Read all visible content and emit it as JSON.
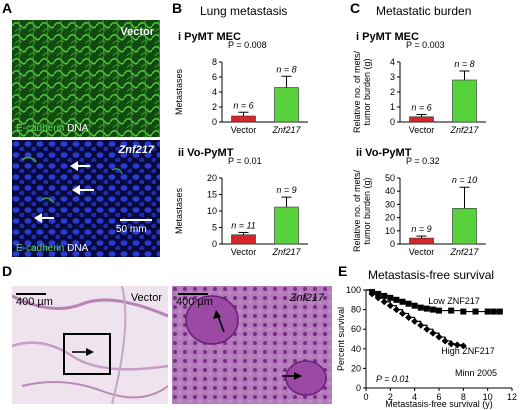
{
  "panel_letters": {
    "A": "A",
    "B": "B",
    "C": "C",
    "D": "D",
    "E": "E"
  },
  "panel_a": {
    "top_label": "Vector",
    "bottom_label": "Znf217",
    "caption_marker": "E-cadherin",
    "caption_dna": "DNA",
    "scale_bar": "50 mm"
  },
  "panel_b": {
    "title": "Lung metastasis",
    "ylabel": "Metastases"
  },
  "panel_c": {
    "title": "Metastatic burden",
    "ylabel_line1": "Relative no. of mets/",
    "ylabel_line2": "tumor burden (g)"
  },
  "panel_d": {
    "left_label": "Vector",
    "right_label": "Znf217",
    "scale_left": "400 µm",
    "scale_right": "400 µm"
  },
  "panel_e": {
    "title": "Metastasis-free survival",
    "xlabel": "Metastasis-free survival (y)",
    "ylabel": "Percent survival",
    "pvalue": "P = 0.01",
    "dataset": "Minn 2005",
    "low_label": "Low ZNF217",
    "high_label": "High ZNF217"
  },
  "colors": {
    "vector_bar": "#d62728",
    "znf217_bar": "#58d23c",
    "low": "#000000",
    "high": "#000000"
  },
  "chart_data": [
    {
      "type": "bar",
      "panel": "B",
      "subtitle": "i   PyMT MEC",
      "categories": [
        "Vector",
        "Znf217"
      ],
      "values": [
        0.8,
        4.6
      ],
      "errors": [
        0.5,
        1.5
      ],
      "n_labels": [
        "n = 6",
        "n = 8"
      ],
      "pvalue": "P = 0.008",
      "ylim": [
        0,
        8
      ],
      "yticks": [
        0,
        2,
        4,
        6,
        8
      ],
      "ylabel": "Metastases"
    },
    {
      "type": "bar",
      "panel": "B",
      "subtitle": "ii   Vo-PyMT",
      "categories": [
        "Vector",
        "Znf217"
      ],
      "values": [
        2.8,
        11.2
      ],
      "errors": [
        0.7,
        3.0
      ],
      "n_labels": [
        "n = 11",
        "n = 9"
      ],
      "pvalue": "P = 0.01",
      "ylim": [
        0,
        20
      ],
      "yticks": [
        0,
        5,
        10,
        15,
        20
      ],
      "ylabel": "Metastases"
    },
    {
      "type": "bar",
      "panel": "C",
      "subtitle": "i   PyMT MEC",
      "categories": [
        "Vector",
        "Znf217"
      ],
      "values": [
        0.35,
        2.8
      ],
      "errors": [
        0.15,
        0.6
      ],
      "n_labels": [
        "n = 6",
        "n = 8"
      ],
      "pvalue": "P = 0.003",
      "ylim": [
        0,
        4
      ],
      "yticks": [
        0,
        1,
        2,
        3,
        4
      ],
      "ylabel": "Relative no. of mets/ tumor burden (g)"
    },
    {
      "type": "bar",
      "panel": "C",
      "subtitle": "ii   Vo-PyMT",
      "categories": [
        "Vector",
        "Znf217"
      ],
      "values": [
        4.5,
        27
      ],
      "errors": [
        1.5,
        16
      ],
      "n_labels": [
        "n = 9",
        "n = 10"
      ],
      "pvalue": "P = 0.32",
      "ylim": [
        0,
        50
      ],
      "yticks": [
        0,
        10,
        20,
        30,
        40,
        50
      ],
      "ylabel": "Relative no. of mets/ tumor burden (g)"
    },
    {
      "type": "line",
      "panel": "E",
      "title": "Metastasis-free survival",
      "xlabel": "Metastasis-free survival (y)",
      "ylabel": "Percent survival",
      "xlim": [
        0,
        12
      ],
      "ylim": [
        0,
        100
      ],
      "xticks": [
        0,
        2,
        4,
        6,
        8,
        10,
        12
      ],
      "yticks": [
        0,
        20,
        40,
        60,
        80,
        100
      ],
      "series": [
        {
          "name": "Low ZNF217",
          "x": [
            0,
            0.5,
            1,
            1.5,
            2,
            2.5,
            3,
            3.5,
            4,
            4.5,
            5,
            5.5,
            6,
            7,
            8,
            9,
            10,
            10.5,
            11
          ],
          "y": [
            100,
            98,
            96,
            94,
            92,
            90,
            88,
            86,
            84,
            82,
            81,
            80,
            79,
            79,
            78,
            78,
            78,
            78,
            78
          ]
        },
        {
          "name": "High ZNF217",
          "x": [
            0,
            0.5,
            1,
            1.5,
            2,
            2.5,
            3,
            3.5,
            4,
            4.5,
            5,
            5.5,
            6,
            6.5,
            7,
            7.5,
            8
          ],
          "y": [
            100,
            96,
            92,
            88,
            84,
            80,
            76,
            72,
            68,
            64,
            60,
            56,
            52,
            48,
            45,
            44,
            43
          ]
        }
      ]
    }
  ]
}
